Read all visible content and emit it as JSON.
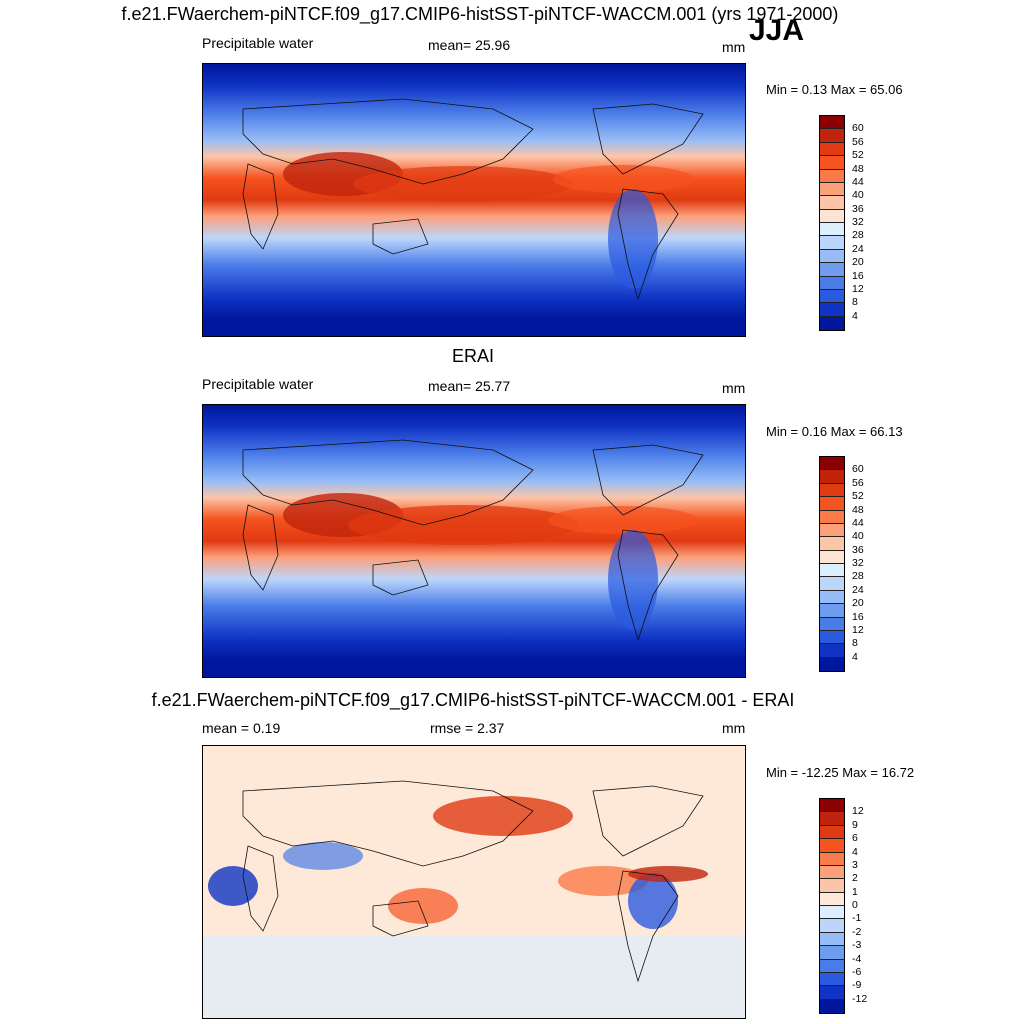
{
  "header": {
    "title": "f.e21.FWaerchem-piNTCF.f09_g17.CMIP6-histSST-piNTCF-WACCM.001 (yrs 1971-2000)",
    "season": "JJA"
  },
  "panels": [
    {
      "title": "",
      "left_label": "Precipitable water",
      "center_label": "mean=  25.96",
      "units": "mm",
      "minmax": "Min =   0.13 Max =  65.06",
      "colorbar": {
        "ticks": [
          "60",
          "56",
          "52",
          "48",
          "44",
          "40",
          "36",
          "32",
          "28",
          "24",
          "20",
          "16",
          "12",
          "8",
          "4"
        ],
        "colors": [
          "#8b0000",
          "#c0240c",
          "#e03a12",
          "#f5531f",
          "#fb7a4a",
          "#fca07a",
          "#fdc5a8",
          "#fde4d2",
          "#ddeeff",
          "#bcd6fb",
          "#97bdf7",
          "#6e9df0",
          "#4a7ce8",
          "#2a5ae0",
          "#0f33c4",
          "#00169c"
        ]
      }
    },
    {
      "title": "ERAI",
      "left_label": "Precipitable water",
      "center_label": "mean=  25.77",
      "units": "mm",
      "minmax": "Min =   0.16 Max =  66.13",
      "colorbar": {
        "ticks": [
          "60",
          "56",
          "52",
          "48",
          "44",
          "40",
          "36",
          "32",
          "28",
          "24",
          "20",
          "16",
          "12",
          "8",
          "4"
        ],
        "colors": [
          "#8b0000",
          "#c0240c",
          "#e03a12",
          "#f5531f",
          "#fb7a4a",
          "#fca07a",
          "#fdc5a8",
          "#fde4d2",
          "#ddeeff",
          "#bcd6fb",
          "#97bdf7",
          "#6e9df0",
          "#4a7ce8",
          "#2a5ae0",
          "#0f33c4",
          "#00169c"
        ]
      }
    },
    {
      "title": "f.e21.FWaerchem-piNTCF.f09_g17.CMIP6-histSST-piNTCF-WACCM.001 - ERAI",
      "left_label": "mean =   0.19",
      "center_label": "rmse =   2.37",
      "units": "mm",
      "minmax": "Min = -12.25 Max =  16.72",
      "colorbar": {
        "ticks": [
          "12",
          "9",
          "6",
          "4",
          "3",
          "2",
          "1",
          "0",
          "-1",
          "-2",
          "-3",
          "-4",
          "-6",
          "-9",
          "-12"
        ],
        "colors": [
          "#8b0000",
          "#c0240c",
          "#e03a12",
          "#f5531f",
          "#fb7a4a",
          "#fca07a",
          "#fdc5a8",
          "#fee8d8",
          "#ddeeff",
          "#bcd6fb",
          "#97bdf7",
          "#6e9df0",
          "#4a7ce8",
          "#2a5ae0",
          "#0f33c4",
          "#00169c"
        ]
      }
    }
  ]
}
